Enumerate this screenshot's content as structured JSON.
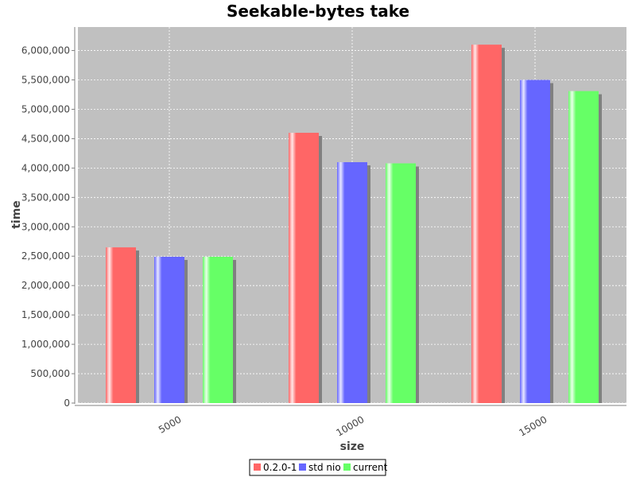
{
  "chart_data": {
    "type": "bar",
    "title": "Seekable-bytes take",
    "xlabel": "size",
    "ylabel": "time",
    "categories": [
      "5000",
      "10000",
      "15000"
    ],
    "series": [
      {
        "name": "0.2.0-1",
        "color": "#ff6666",
        "values": [
          2650000,
          4600000,
          6100000
        ]
      },
      {
        "name": "std nio",
        "color": "#6666ff",
        "values": [
          2490000,
          4100000,
          5500000
        ]
      },
      {
        "name": "current",
        "color": "#66ff66",
        "values": [
          2490000,
          4080000,
          5310000
        ]
      }
    ],
    "ylim": [
      0,
      6400000
    ],
    "yticks": [
      0,
      500000,
      1000000,
      1500000,
      2000000,
      2500000,
      3000000,
      3500000,
      4000000,
      4500000,
      5000000,
      5500000,
      6000000
    ],
    "ytick_labels": [
      "0",
      "500,000",
      "1,000,000",
      "1,500,000",
      "2,000,000",
      "2,500,000",
      "3,000,000",
      "3,500,000",
      "4,000,000",
      "4,500,000",
      "5,000,000",
      "5,500,000",
      "6,000,000"
    ],
    "grid": true,
    "plot_background": "#c0c0c0",
    "legend_position": "bottom"
  }
}
